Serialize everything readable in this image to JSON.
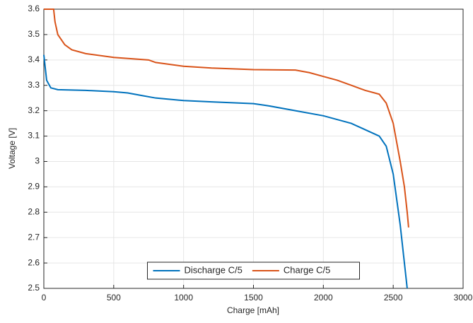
{
  "chart_data": {
    "type": "line",
    "xlabel": "Charge  [mAh]",
    "ylabel": "Voltage  [V]",
    "xlim": [
      0,
      3000
    ],
    "xticks": [
      0,
      500,
      1000,
      1500,
      2000,
      2500,
      3000
    ],
    "ylim": [
      2.5,
      3.6
    ],
    "yticks": [
      2.5,
      2.6,
      2.7,
      2.8,
      2.9,
      3,
      3.1,
      3.2,
      3.3,
      3.4,
      3.5,
      3.6
    ],
    "grid": true,
    "legend": "lower center",
    "series": [
      {
        "name": "Discharge C/5",
        "color": "#0072bd",
        "x": [
          0,
          20,
          50,
          100,
          300,
          500,
          600,
          700,
          800,
          1000,
          1200,
          1500,
          1600,
          1800,
          2000,
          2200,
          2300,
          2400,
          2450,
          2500,
          2550,
          2580,
          2600
        ],
        "values": [
          3.42,
          3.32,
          3.29,
          3.283,
          3.28,
          3.275,
          3.27,
          3.26,
          3.25,
          3.24,
          3.235,
          3.228,
          3.22,
          3.2,
          3.18,
          3.15,
          3.125,
          3.1,
          3.06,
          2.95,
          2.75,
          2.6,
          2.5
        ]
      },
      {
        "name": "Charge C/5",
        "color": "#d95319",
        "x": [
          0,
          70,
          80,
          100,
          150,
          200,
          300,
          500,
          750,
          800,
          1000,
          1200,
          1500,
          1800,
          1900,
          2000,
          2100,
          2200,
          2300,
          2400,
          2450,
          2500,
          2550,
          2580,
          2600,
          2610
        ],
        "values": [
          3.6,
          3.6,
          3.55,
          3.5,
          3.46,
          3.44,
          3.425,
          3.41,
          3.4,
          3.39,
          3.375,
          3.368,
          3.362,
          3.36,
          3.35,
          3.335,
          3.32,
          3.3,
          3.28,
          3.265,
          3.23,
          3.15,
          3.0,
          2.9,
          2.8,
          2.74
        ]
      }
    ]
  }
}
